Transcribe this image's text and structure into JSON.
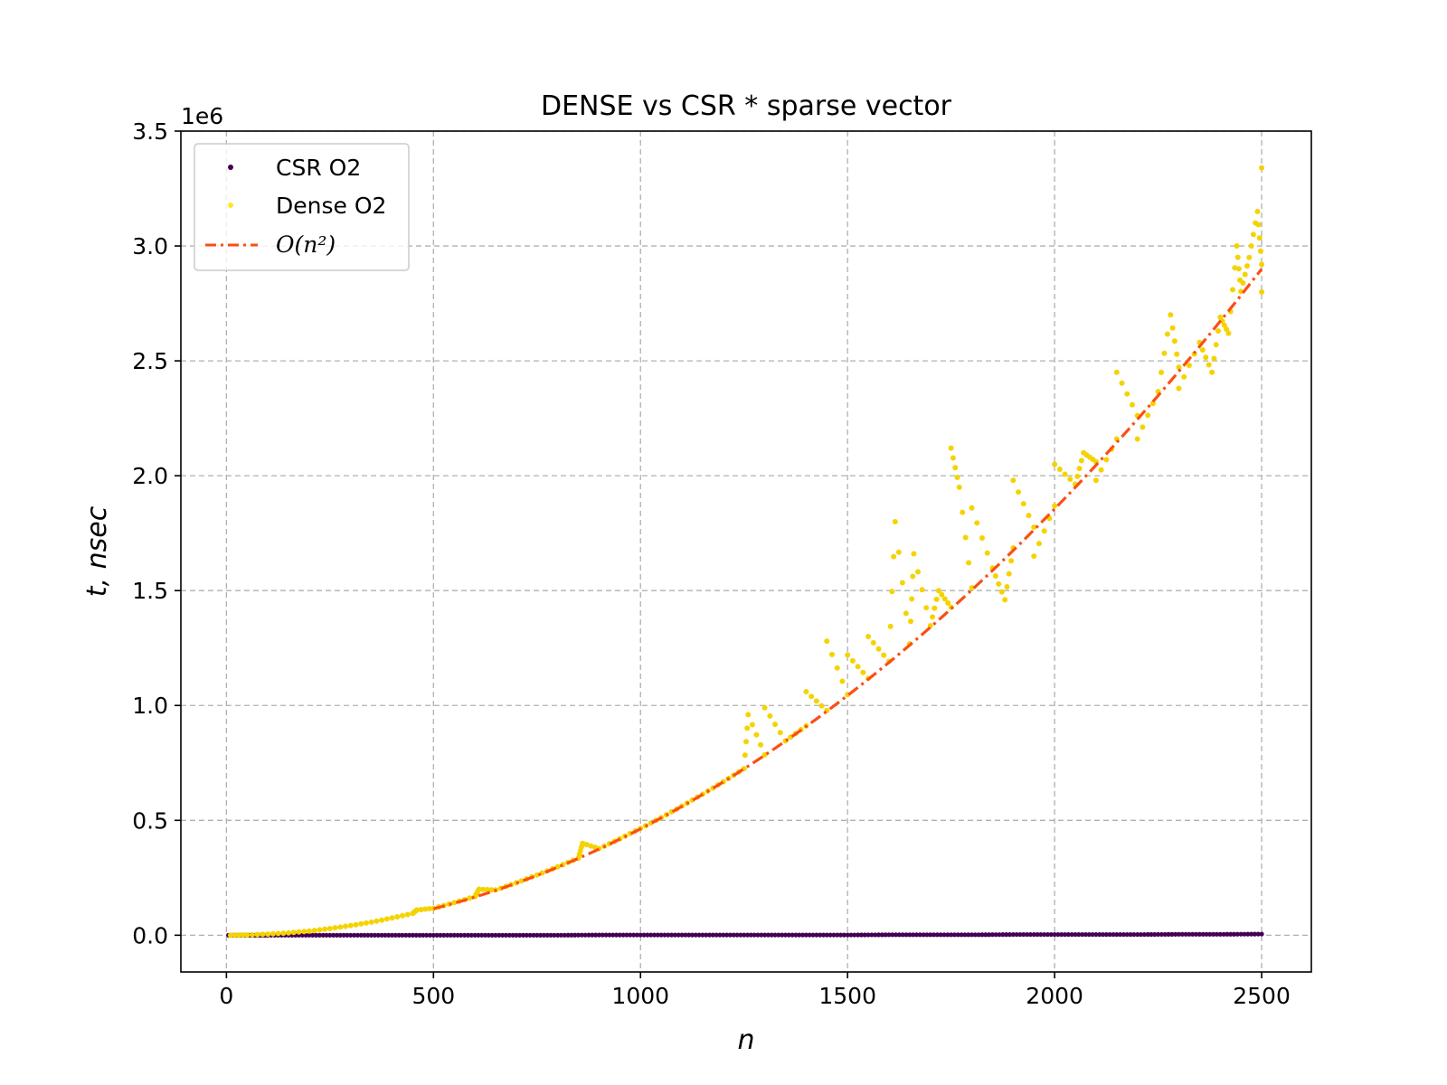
{
  "chart_data": {
    "type": "scatter",
    "title": "DENSE vs CSR * sparse vector",
    "xlabel": "n",
    "ylabel": "t, nsec",
    "y_offset_text": "1e6",
    "xlim": [
      -110,
      2620
    ],
    "ylim": [
      -160000,
      3500000
    ],
    "xticks": [
      0,
      500,
      1000,
      1500,
      2000,
      2500
    ],
    "xtick_labels": [
      "0",
      "500",
      "1000",
      "1500",
      "2000",
      "2500"
    ],
    "yticks": [
      0,
      500000,
      1000000,
      1500000,
      2000000,
      2500000,
      3000000,
      3500000
    ],
    "ytick_labels": [
      "0.0",
      "0.5",
      "1.0",
      "1.5",
      "2.0",
      "2.5",
      "3.0",
      "3.5"
    ],
    "grid": true,
    "legend_placement": "upper-left",
    "series": [
      {
        "name": "CSR O2",
        "kind": "scatter",
        "color": "#440154",
        "x_range": [
          5,
          2500
        ],
        "points": [
          [
            5,
            0
          ],
          [
            50,
            0
          ],
          [
            100,
            0
          ],
          [
            200,
            0
          ],
          [
            300,
            0
          ],
          [
            400,
            0
          ],
          [
            500,
            0
          ],
          [
            600,
            0
          ],
          [
            700,
            0
          ],
          [
            800,
            0
          ],
          [
            900,
            1000
          ],
          [
            1000,
            1000
          ],
          [
            1100,
            1000
          ],
          [
            1200,
            1000
          ],
          [
            1300,
            1000
          ],
          [
            1400,
            1000
          ],
          [
            1500,
            1000
          ],
          [
            1600,
            2000
          ],
          [
            1700,
            2000
          ],
          [
            1800,
            2000
          ],
          [
            1900,
            3000
          ],
          [
            2000,
            3000
          ],
          [
            2100,
            3000
          ],
          [
            2200,
            3000
          ],
          [
            2300,
            4000
          ],
          [
            2400,
            4000
          ],
          [
            2500,
            5000
          ]
        ]
      },
      {
        "name": "Dense O2",
        "kind": "scatter",
        "color": "#fde725",
        "points": [
          [
            10,
            0
          ],
          [
            50,
            1000
          ],
          [
            100,
            5000
          ],
          [
            150,
            10000
          ],
          [
            200,
            18000
          ],
          [
            250,
            29000
          ],
          [
            300,
            42000
          ],
          [
            350,
            57000
          ],
          [
            400,
            75000
          ],
          [
            450,
            95000
          ],
          [
            460,
            110000
          ],
          [
            500,
            117000
          ],
          [
            550,
            142000
          ],
          [
            600,
            168000
          ],
          [
            610,
            200000
          ],
          [
            650,
            197000
          ],
          [
            700,
            228000
          ],
          [
            750,
            262000
          ],
          [
            800,
            298000
          ],
          [
            850,
            336000
          ],
          [
            860,
            400000
          ],
          [
            900,
            377000
          ],
          [
            950,
            420000
          ],
          [
            1000,
            465000
          ],
          [
            1050,
            512000
          ],
          [
            1100,
            562000
          ],
          [
            1150,
            614000
          ],
          [
            1200,
            668000
          ],
          [
            1250,
            725000
          ],
          [
            1260,
            960000
          ],
          [
            1300,
            785000
          ],
          [
            1300,
            990000
          ],
          [
            1350,
            846000
          ],
          [
            1400,
            911000
          ],
          [
            1400,
            1060000
          ],
          [
            1450,
            978000
          ],
          [
            1450,
            1280000
          ],
          [
            1500,
            1047000
          ],
          [
            1500,
            1220000
          ],
          [
            1550,
            1118000
          ],
          [
            1550,
            1300000
          ],
          [
            1600,
            1192000
          ],
          [
            1615,
            1800000
          ],
          [
            1650,
            1268000
          ],
          [
            1660,
            1660000
          ],
          [
            1700,
            1347000
          ],
          [
            1720,
            1500000
          ],
          [
            1750,
            1428000
          ],
          [
            1750,
            2120000
          ],
          [
            1770,
            1950000
          ],
          [
            1800,
            1512000
          ],
          [
            1800,
            1860000
          ],
          [
            1850,
            1598000
          ],
          [
            1880,
            1460000
          ],
          [
            1900,
            1686000
          ],
          [
            1900,
            1980000
          ],
          [
            1950,
            1776000
          ],
          [
            1950,
            1650000
          ],
          [
            2000,
            1869000
          ],
          [
            2000,
            2050000
          ],
          [
            2050,
            1963000
          ],
          [
            2070,
            2100000
          ],
          [
            2100,
            2061000
          ],
          [
            2100,
            1980000
          ],
          [
            2150,
            2160000
          ],
          [
            2150,
            2450000
          ],
          [
            2200,
            2262000
          ],
          [
            2200,
            2160000
          ],
          [
            2250,
            2366000
          ],
          [
            2280,
            2700000
          ],
          [
            2300,
            2472000
          ],
          [
            2300,
            2380000
          ],
          [
            2350,
            2580000
          ],
          [
            2380,
            2450000
          ],
          [
            2400,
            2690000
          ],
          [
            2420,
            2620000
          ],
          [
            2440,
            3000000
          ],
          [
            2450,
            2802000
          ],
          [
            2470,
            2950000
          ],
          [
            2490,
            3150000
          ],
          [
            2500,
            2920000
          ],
          [
            2500,
            3340000
          ],
          [
            2500,
            2800000
          ]
        ]
      },
      {
        "name": "O(n²)",
        "kind": "line",
        "style": "dash-dot",
        "color": "#fc4e14",
        "x_range": [
          500,
          2500
        ],
        "y_at_range": [
          115000,
          2900000
        ]
      }
    ]
  }
}
